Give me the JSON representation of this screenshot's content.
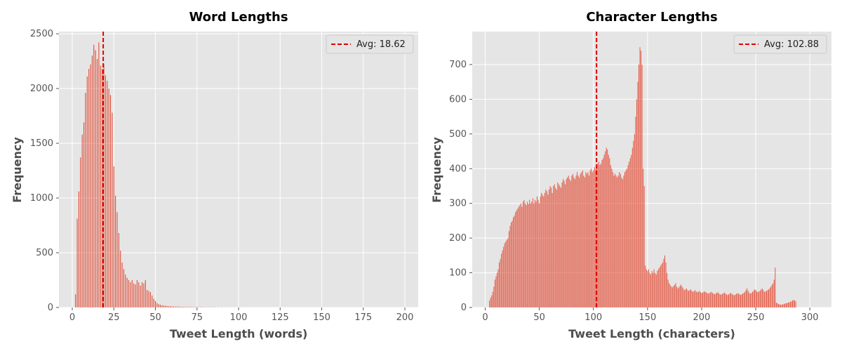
{
  "chart_data": [
    {
      "type": "bar",
      "title": "Word Lengths",
      "xlabel": "Tweet Length (words)",
      "ylabel": "Frequency",
      "xlim": [
        -8,
        208
      ],
      "ylim": [
        0,
        2520
      ],
      "xticks": [
        0,
        25,
        50,
        75,
        100,
        125,
        150,
        175,
        200
      ],
      "yticks": [
        0,
        500,
        1000,
        1500,
        2000,
        2500
      ],
      "grid": true,
      "legend_position": "top-right",
      "bar_color": "#e24a33",
      "avg_line": {
        "value": 18.62,
        "label": "Avg: 18.62",
        "color": "#e00000"
      },
      "x": [
        2,
        3,
        4,
        5,
        6,
        7,
        8,
        9,
        10,
        11,
        12,
        13,
        14,
        15,
        16,
        17,
        18,
        19,
        20,
        21,
        22,
        23,
        24,
        25,
        26,
        27,
        28,
        29,
        30,
        31,
        32,
        33,
        34,
        35,
        36,
        37,
        38,
        39,
        40,
        41,
        42,
        43,
        44,
        45,
        46,
        47,
        48,
        49,
        50,
        51,
        52,
        53,
        54,
        55,
        56,
        57,
        58,
        59,
        60,
        61,
        62,
        63,
        64,
        65,
        66,
        67,
        68,
        69,
        70,
        71,
        72,
        73,
        74,
        75,
        76,
        77,
        78,
        79,
        80,
        81,
        82,
        83,
        84,
        85,
        86,
        88,
        90,
        92,
        95,
        98,
        100,
        102,
        105
      ],
      "values": [
        120,
        810,
        1060,
        1370,
        1580,
        1690,
        1960,
        2110,
        2180,
        2220,
        2300,
        2400,
        2350,
        2270,
        2420,
        2210,
        2180,
        2220,
        2120,
        2070,
        2000,
        1940,
        1780,
        1290,
        1020,
        870,
        680,
        520,
        410,
        350,
        300,
        270,
        250,
        230,
        250,
        220,
        210,
        250,
        230,
        200,
        230,
        220,
        250,
        160,
        150,
        140,
        110,
        80,
        60,
        40,
        30,
        25,
        20,
        18,
        15,
        14,
        12,
        12,
        10,
        9,
        8,
        8,
        8,
        7,
        6,
        6,
        6,
        5,
        5,
        5,
        4,
        4,
        4,
        3,
        3,
        3,
        3,
        2,
        2,
        2,
        2,
        2,
        2,
        2,
        2,
        2,
        2,
        1,
        1,
        1,
        1,
        1,
        1
      ]
    },
    {
      "type": "bar",
      "title": "Character Lengths",
      "xlabel": "Tweet Length (characters)",
      "ylabel": "Frequency",
      "xlim": [
        -12,
        320
      ],
      "ylim": [
        0,
        795
      ],
      "xticks": [
        0,
        50,
        100,
        150,
        200,
        250,
        300
      ],
      "yticks": [
        0,
        100,
        200,
        300,
        400,
        500,
        600,
        700
      ],
      "grid": true,
      "legend_position": "top-right",
      "bar_color": "#e24a33",
      "avg_line": {
        "value": 102.88,
        "label": "Avg: 102.88",
        "color": "#e00000"
      },
      "x_start": 4,
      "x_step": 1,
      "values": [
        20,
        28,
        35,
        45,
        60,
        80,
        90,
        100,
        110,
        130,
        140,
        155,
        165,
        175,
        185,
        190,
        195,
        200,
        220,
        235,
        245,
        250,
        260,
        265,
        275,
        280,
        285,
        290,
        295,
        300,
        290,
        305,
        310,
        300,
        295,
        305,
        298,
        310,
        300,
        305,
        315,
        300,
        310,
        305,
        320,
        310,
        300,
        320,
        330,
        325,
        320,
        330,
        340,
        335,
        325,
        340,
        350,
        345,
        330,
        350,
        355,
        345,
        340,
        360,
        355,
        350,
        345,
        360,
        370,
        365,
        355,
        370,
        375,
        380,
        370,
        365,
        380,
        385,
        375,
        370,
        380,
        390,
        380,
        375,
        385,
        390,
        395,
        380,
        375,
        390,
        385,
        390,
        380,
        395,
        400,
        390,
        395,
        405,
        400,
        410,
        415,
        420,
        410,
        415,
        425,
        430,
        440,
        450,
        460,
        455,
        440,
        430,
        410,
        400,
        390,
        380,
        385,
        380,
        375,
        380,
        390,
        385,
        375,
        370,
        380,
        390,
        395,
        400,
        410,
        420,
        430,
        440,
        460,
        480,
        500,
        550,
        600,
        650,
        700,
        750,
        740,
        700,
        400,
        350,
        120,
        110,
        105,
        110,
        100,
        95,
        105,
        100,
        110,
        100,
        95,
        105,
        110,
        115,
        120,
        125,
        130,
        140,
        150,
        130,
        100,
        80,
        70,
        65,
        60,
        58,
        62,
        65,
        70,
        60,
        55,
        58,
        62,
        66,
        60,
        55,
        50,
        52,
        55,
        50,
        48,
        50,
        52,
        48,
        45,
        47,
        50,
        46,
        44,
        45,
        48,
        44,
        42,
        43,
        45,
        46,
        44,
        42,
        40,
        41,
        43,
        45,
        42,
        40,
        38,
        40,
        42,
        44,
        40,
        38,
        37,
        39,
        41,
        43,
        40,
        38,
        36,
        38,
        40,
        42,
        39,
        37,
        35,
        37,
        39,
        41,
        40,
        38,
        36,
        38,
        40,
        42,
        45,
        50,
        55,
        48,
        42,
        40,
        42,
        45,
        48,
        52,
        50,
        46,
        44,
        46,
        48,
        52,
        55,
        50,
        45,
        46,
        48,
        50,
        52,
        56,
        60,
        65,
        70,
        80,
        115,
        14,
        12,
        10,
        9,
        8,
        8,
        9,
        10,
        11,
        12,
        13,
        14,
        15,
        16,
        18,
        20,
        22,
        20,
        18
      ]
    }
  ]
}
